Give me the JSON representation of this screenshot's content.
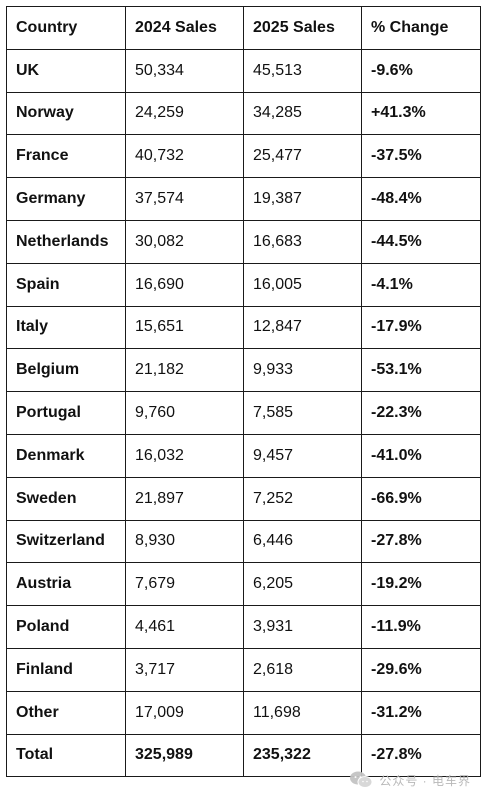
{
  "table": {
    "headers": [
      "Country",
      "2024 Sales",
      "2025 Sales",
      "% Change"
    ],
    "rows": [
      {
        "country": "UK",
        "sales_2024": "50,334",
        "sales_2025": "45,513",
        "change": "-9.6%"
      },
      {
        "country": "Norway",
        "sales_2024": "24,259",
        "sales_2025": "34,285",
        "change": "+41.3%"
      },
      {
        "country": "France",
        "sales_2024": "40,732",
        "sales_2025": "25,477",
        "change": "-37.5%"
      },
      {
        "country": "Germany",
        "sales_2024": "37,574",
        "sales_2025": "19,387",
        "change": "-48.4%"
      },
      {
        "country": "Netherlands",
        "sales_2024": "30,082",
        "sales_2025": "16,683",
        "change": "-44.5%"
      },
      {
        "country": "Spain",
        "sales_2024": "16,690",
        "sales_2025": "16,005",
        "change": "-4.1%"
      },
      {
        "country": "Italy",
        "sales_2024": "15,651",
        "sales_2025": "12,847",
        "change": "-17.9%"
      },
      {
        "country": "Belgium",
        "sales_2024": "21,182",
        "sales_2025": "9,933",
        "change": "-53.1%"
      },
      {
        "country": "Portugal",
        "sales_2024": "9,760",
        "sales_2025": "7,585",
        "change": "-22.3%"
      },
      {
        "country": "Denmark",
        "sales_2024": "16,032",
        "sales_2025": "9,457",
        "change": "-41.0%"
      },
      {
        "country": "Sweden",
        "sales_2024": "21,897",
        "sales_2025": "7,252",
        "change": "-66.9%"
      },
      {
        "country": "Switzerland",
        "sales_2024": "8,930",
        "sales_2025": "6,446",
        "change": "-27.8%"
      },
      {
        "country": "Austria",
        "sales_2024": "7,679",
        "sales_2025": "6,205",
        "change": "-19.2%"
      },
      {
        "country": "Poland",
        "sales_2024": "4,461",
        "sales_2025": "3,931",
        "change": "-11.9%"
      },
      {
        "country": "Finland",
        "sales_2024": "3,717",
        "sales_2025": "2,618",
        "change": "-29.6%"
      },
      {
        "country": "Other",
        "sales_2024": "17,009",
        "sales_2025": "11,698",
        "change": "-31.2%"
      }
    ],
    "total": {
      "country": "Total",
      "sales_2024": "325,989",
      "sales_2025": "235,322",
      "change": "-27.8%"
    }
  },
  "watermark": {
    "text": "公众号 · 电车界",
    "icon": "wechat-logo-icon"
  },
  "colors": {
    "border": "#1a1a1a",
    "text": "#111111",
    "watermark": "#b5b5b5"
  }
}
